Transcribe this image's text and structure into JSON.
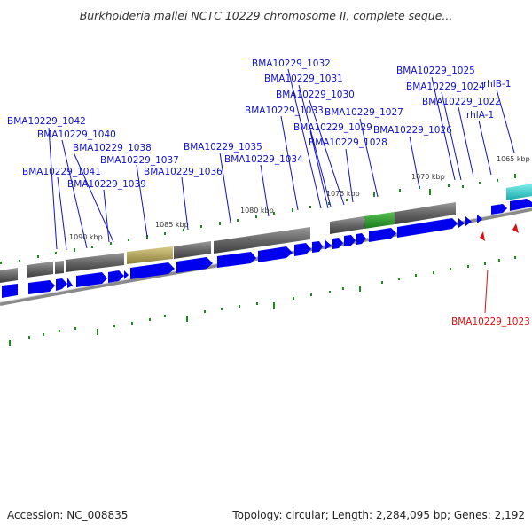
{
  "title": "Burkholderia mallei NCTC 10229 chromosome II, complete seque...",
  "footer": {
    "accession": "Accession: NC_008835",
    "info": "Topology: circular; Length: 2,284,095 bp; Genes: 2,192"
  },
  "kbp_labels": [
    "1090 kbp",
    "1085 kbp",
    "1080 kbp",
    "1075 kbp",
    "1070 kbp",
    "1065 kbp"
  ],
  "gene_labels": [
    "BMA10229_1042",
    "BMA10229_1040",
    "BMA10229_1041",
    "BMA10229_1038",
    "BMA10229_1039",
    "BMA10229_1037",
    "BMA10229_1036",
    "BMA10229_1035",
    "BMA10229_1034",
    "BMA10229_1033",
    "BMA10229_1032",
    "BMA10229_1031",
    "BMA10229_1030",
    "BMA10229_1029",
    "BMA10229_1028",
    "BMA10229_1027",
    "BMA10229_1026",
    "BMA10229_1025",
    "BMA10229_1024",
    "BMA10229_1022",
    "rhlA-1",
    "rhlB-1"
  ],
  "highlight_label": "BMA10229_1023",
  "colors": {
    "gene": "#0000ee",
    "label": "#1111cc",
    "highlight": "#dd1111",
    "feature_gray": "#707070",
    "feature_olive": "#b0a060",
    "feature_green": "#2a9a2a",
    "feature_cyan": "#33cccc",
    "tick": "#228822"
  }
}
